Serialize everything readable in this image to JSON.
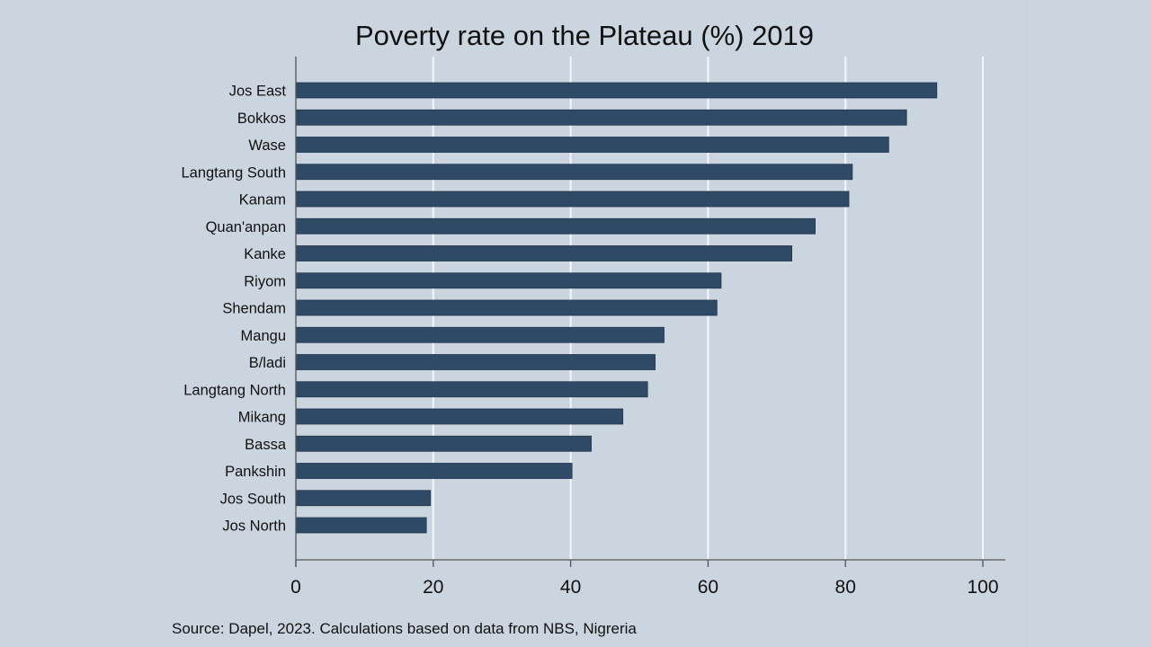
{
  "chart_data": {
    "type": "bar",
    "orientation": "horizontal",
    "title": "Poverty rate on the Plateau (%) 2019",
    "xlabel": "",
    "ylabel": "",
    "categories": [
      "Jos East",
      "Bokkos",
      "Wase",
      "Langtang South",
      "Kanam",
      "Quan'anpan",
      "Kanke",
      "Riyom",
      "Shendam",
      "Mangu",
      "B/ladi",
      "Langtang North",
      "Mikang",
      "Bassa",
      "Pankshin",
      "Jos South",
      "Jos North"
    ],
    "values": [
      93.3,
      88.9,
      86.3,
      81.0,
      80.5,
      75.6,
      72.2,
      61.9,
      61.3,
      53.6,
      52.3,
      51.2,
      47.6,
      43.0,
      40.2,
      19.6,
      19.0
    ],
    "xlim": [
      0,
      100
    ],
    "xticks": [
      0,
      20,
      40,
      60,
      80,
      100
    ],
    "xtick_labels": [
      "0",
      "20",
      "40",
      "60",
      "80",
      "100"
    ],
    "grid": true,
    "legend": "none",
    "bar_color": "#2e4a66",
    "source": "Source: Dapel, 2023. Calculations based on data from NBS, Nigreria"
  },
  "colors": {
    "background": "#cbd5e0",
    "gridline": "#f4f7fa",
    "axis": "#555555",
    "text": "#111111"
  }
}
